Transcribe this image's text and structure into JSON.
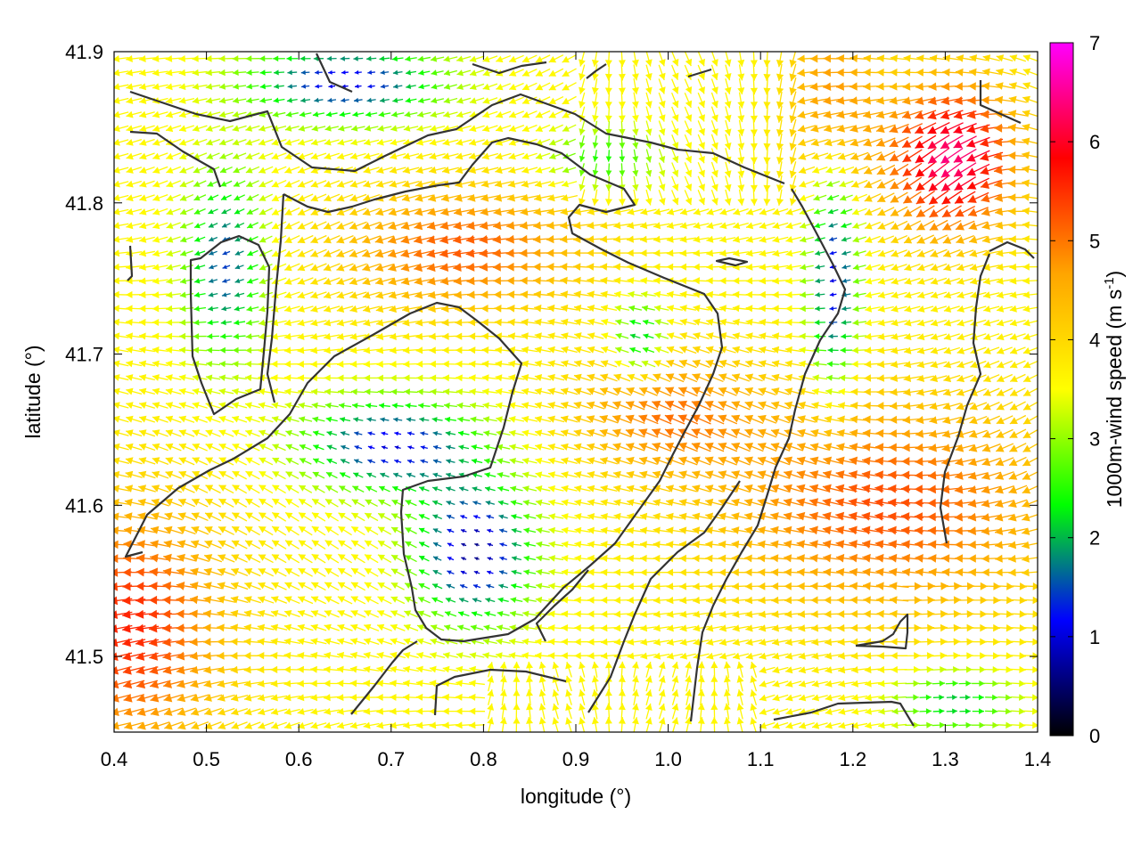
{
  "chart_data": {
    "type": "quiver",
    "title": "",
    "xlabel": "longitude (°)",
    "ylabel": "latitude (°)",
    "xlim": [
      0.4,
      1.4
    ],
    "ylim": [
      41.45,
      41.9
    ],
    "x_ticks": [
      "0.4",
      "0.5",
      "0.6",
      "0.7",
      "0.8",
      "0.9",
      "1.0",
      "1.1",
      "1.2",
      "1.3",
      "1.4"
    ],
    "y_ticks": [
      "41.5",
      "41.6",
      "41.7",
      "41.8",
      "41.9"
    ],
    "colorbar": {
      "label_prefix": "1000m-wind speed (m s",
      "label_exponent": "-1",
      "label_suffix": ")",
      "range": [
        0,
        7
      ],
      "ticks": [
        "0",
        "1",
        "2",
        "3",
        "4",
        "5",
        "6",
        "7"
      ],
      "colors": [
        "#000000",
        "#0000ff",
        "#00ff00",
        "#ffff00",
        "#ffa500",
        "#ff0000",
        "#ff00ff"
      ]
    },
    "contour_color": "#333333",
    "grid": false
  }
}
